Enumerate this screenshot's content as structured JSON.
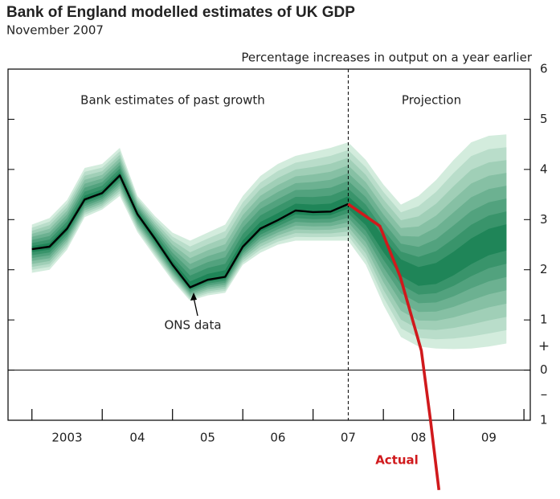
{
  "chart_data": {
    "type": "fan",
    "title": "Bank of England modelled estimates of UK GDP",
    "subtitle": "November 2007",
    "y_axis_label": "Percentage increases in output on a year earlier",
    "annotations": {
      "past": "Bank estimates of past growth",
      "projection": "Projection",
      "ons": "ONS data",
      "plus": "+",
      "minus": "–"
    },
    "xlim": [
      2002.66,
      2010.09
    ],
    "xticks": [
      {
        "value": 2003.5,
        "label": "2003"
      },
      {
        "value": 2004.5,
        "label": "04"
      },
      {
        "value": 2005.5,
        "label": "05"
      },
      {
        "value": 2006.5,
        "label": "06"
      },
      {
        "value": 2007.5,
        "label": "07"
      },
      {
        "value": 2008.5,
        "label": "08"
      },
      {
        "value": 2009.5,
        "label": "09"
      }
    ],
    "xtick_marks": [
      2003,
      2004,
      2005,
      2006,
      2007,
      2008,
      2009,
      2010
    ],
    "ylim": [
      -1,
      6
    ],
    "yticks": [
      6,
      5,
      4,
      3,
      2,
      1,
      0,
      {
        "value": -1,
        "label": "1"
      }
    ],
    "projection_start": 2007.5,
    "fan": {
      "color_outer": "#d3ecdd",
      "color_inner": "#1f8558",
      "x": [
        2003,
        2003.25,
        2003.5,
        2003.75,
        2004,
        2004.25,
        2004.5,
        2004.75,
        2005,
        2005.25,
        2005.5,
        2005.75,
        2006,
        2006.25,
        2006.5,
        2006.75,
        2007,
        2007.25,
        2007.5,
        2007.75,
        2008,
        2008.25,
        2008.5,
        2008.75,
        2009,
        2009.25,
        2009.5,
        2009.75
      ],
      "center": [
        2.41,
        2.46,
        2.82,
        3.4,
        3.53,
        3.88,
        3.11,
        2.62,
        2.1,
        1.65,
        1.8,
        1.86,
        2.46,
        2.82,
        2.99,
        3.18,
        3.15,
        3.16,
        3.31,
        3.0,
        2.5,
        2.05,
        1.85,
        1.9,
        2.1,
        2.35,
        2.55,
        2.65
      ],
      "lower": [
        1.94,
        2.0,
        2.4,
        3.05,
        3.2,
        3.47,
        2.75,
        2.26,
        1.78,
        1.38,
        1.49,
        1.54,
        2.1,
        2.34,
        2.5,
        2.58,
        2.58,
        2.58,
        2.58,
        2.1,
        1.3,
        0.66,
        0.47,
        0.43,
        0.42,
        0.43,
        0.47,
        0.53
      ],
      "upper": [
        2.9,
        3.03,
        3.39,
        4.03,
        4.11,
        4.43,
        3.47,
        3.07,
        2.74,
        2.58,
        2.74,
        2.9,
        3.47,
        3.87,
        4.11,
        4.27,
        4.35,
        4.43,
        4.54,
        4.19,
        3.7,
        3.3,
        3.47,
        3.79,
        4.19,
        4.54,
        4.67,
        4.7
      ]
    },
    "series": [
      {
        "name": "ONS data",
        "color": "#000000",
        "x": [
          2003,
          2003.25,
          2003.5,
          2003.75,
          2004,
          2004.25,
          2004.5,
          2004.75,
          2005,
          2005.25,
          2005.5,
          2005.75,
          2006,
          2006.25,
          2006.5,
          2006.75,
          2007,
          2007.25,
          2007.5
        ],
        "values": [
          2.41,
          2.46,
          2.82,
          3.4,
          3.53,
          3.88,
          3.11,
          2.62,
          2.1,
          1.65,
          1.8,
          1.86,
          2.46,
          2.82,
          2.99,
          3.18,
          3.15,
          3.16,
          3.31
        ]
      },
      {
        "name": "Actual",
        "color": "#d0191c",
        "x": [
          2007.5,
          2007.95,
          2008.24,
          2008.54,
          2008.67,
          2008.79
        ],
        "values": [
          3.31,
          2.87,
          1.86,
          0.39,
          -1.0,
          -2.39
        ]
      }
    ]
  }
}
